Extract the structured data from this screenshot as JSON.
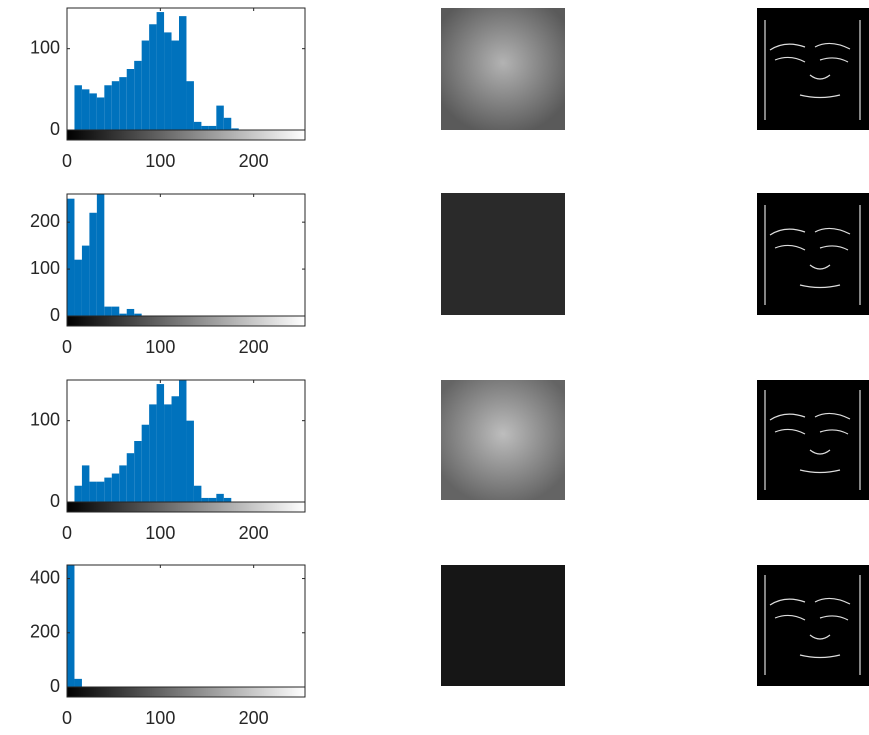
{
  "chart_data": [
    {
      "type": "histogram",
      "color": "#0072bd",
      "bins": [
        0,
        8,
        16,
        24,
        32,
        40,
        48,
        56,
        64,
        72,
        80,
        88,
        96,
        104,
        112,
        120,
        128,
        136,
        144,
        152,
        160,
        168,
        176,
        184,
        192,
        200,
        208,
        216,
        224,
        232,
        240,
        248,
        256
      ],
      "values": [
        0,
        55,
        50,
        45,
        40,
        55,
        60,
        65,
        75,
        85,
        110,
        130,
        145,
        120,
        110,
        140,
        60,
        10,
        5,
        5,
        30,
        15,
        2,
        0,
        0,
        0,
        0,
        0,
        0,
        0,
        0,
        0
      ],
      "xlim": [
        0,
        255
      ],
      "xticks": [
        0,
        100,
        200
      ],
      "ylim": [
        0,
        150
      ],
      "yticks": [
        0,
        100
      ]
    },
    {
      "type": "histogram",
      "color": "#0072bd",
      "bins": [
        0,
        8,
        16,
        24,
        32,
        40,
        48,
        56,
        64,
        72,
        80,
        88,
        96,
        104,
        112,
        120,
        128,
        136,
        144,
        152,
        160,
        168,
        176,
        184,
        192,
        200,
        208,
        216,
        224,
        232,
        240,
        248,
        256
      ],
      "values": [
        250,
        120,
        150,
        220,
        260,
        20,
        20,
        5,
        15,
        5,
        0,
        0,
        0,
        0,
        0,
        0,
        0,
        0,
        0,
        0,
        0,
        0,
        0,
        0,
        0,
        0,
        0,
        0,
        0,
        0,
        0,
        0
      ],
      "xlim": [
        0,
        255
      ],
      "xticks": [
        0,
        100,
        200
      ],
      "ylim": [
        0,
        260
      ],
      "yticks": [
        0,
        100,
        200
      ]
    },
    {
      "type": "histogram",
      "color": "#0072bd",
      "bins": [
        0,
        8,
        16,
        24,
        32,
        40,
        48,
        56,
        64,
        72,
        80,
        88,
        96,
        104,
        112,
        120,
        128,
        136,
        144,
        152,
        160,
        168,
        176,
        184,
        192,
        200,
        208,
        216,
        224,
        232,
        240,
        248,
        256
      ],
      "values": [
        0,
        20,
        45,
        25,
        25,
        30,
        35,
        45,
        60,
        75,
        95,
        120,
        145,
        120,
        130,
        150,
        100,
        20,
        5,
        5,
        10,
        5,
        0,
        0,
        0,
        0,
        0,
        0,
        0,
        0,
        0,
        0
      ],
      "xlim": [
        0,
        255
      ],
      "xticks": [
        0,
        100,
        200
      ],
      "ylim": [
        0,
        150
      ],
      "yticks": [
        0,
        100
      ]
    },
    {
      "type": "histogram",
      "color": "#0072bd",
      "bins": [
        0,
        8,
        16,
        24,
        32,
        40,
        48,
        56,
        64,
        72,
        80,
        88,
        96,
        104,
        112,
        120,
        128,
        136,
        144,
        152,
        160,
        168,
        176,
        184,
        192,
        200,
        208,
        216,
        224,
        232,
        240,
        248,
        256
      ],
      "values": [
        450,
        30,
        0,
        0,
        0,
        0,
        0,
        0,
        0,
        0,
        0,
        0,
        0,
        0,
        0,
        0,
        0,
        0,
        0,
        0,
        0,
        0,
        0,
        0,
        0,
        0,
        0,
        0,
        0,
        0,
        0,
        0
      ],
      "xlim": [
        0,
        255
      ],
      "xticks": [
        0,
        100,
        200
      ],
      "ylim": [
        0,
        450
      ],
      "yticks": [
        0,
        200,
        400
      ]
    }
  ]
}
